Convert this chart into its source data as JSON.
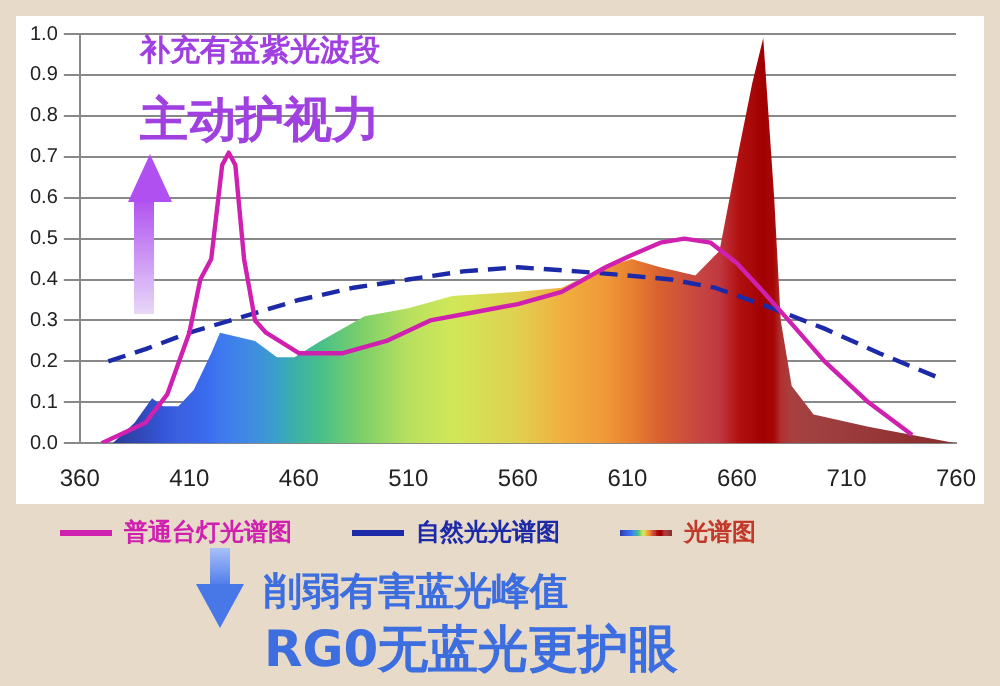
{
  "chart_data": {
    "type": "line",
    "xlim": [
      360,
      760
    ],
    "ylim": [
      0,
      1
    ],
    "xticks": [
      360,
      410,
      460,
      510,
      560,
      610,
      660,
      710,
      760
    ],
    "yticks": [
      {
        "value": 0,
        "label": "0.0"
      },
      0.1,
      0.2,
      0.3,
      0.4,
      0.5,
      0.6,
      0.7,
      0.8,
      0.9,
      {
        "value": 1,
        "label": "1.0"
      }
    ],
    "grid": "y",
    "legend": "bottom",
    "marker": "none",
    "annotations": [
      "补充有益紫光波段",
      "主动护视力",
      "削弱有害蓝光峰值",
      "RG0无蓝光更护眼"
    ],
    "series": [
      {
        "name": "普通台灯光谱图",
        "color": "#d020b0",
        "line_style": "solid",
        "x": [
          370,
          390,
          400,
          410,
          415,
          420,
          425,
          428,
          431,
          435,
          440,
          445,
          460,
          480,
          500,
          520,
          540,
          560,
          580,
          600,
          612,
          625,
          636,
          648,
          660,
          672,
          682,
          700,
          720,
          740
        ],
        "values": [
          0,
          0.05,
          0.12,
          0.27,
          0.4,
          0.45,
          0.68,
          0.71,
          0.68,
          0.45,
          0.3,
          0.27,
          0.22,
          0.22,
          0.25,
          0.3,
          0.32,
          0.34,
          0.37,
          0.43,
          0.46,
          0.49,
          0.5,
          0.49,
          0.44,
          0.37,
          0.31,
          0.2,
          0.1,
          0.02
        ]
      },
      {
        "name": "自然光光谱图",
        "color": "#1c2aa8",
        "line_style": "dashed",
        "x": [
          373,
          390,
          410,
          435,
          460,
          485,
          510,
          535,
          560,
          587,
          610,
          630,
          650,
          676,
          700,
          725,
          752
        ],
        "values": [
          0.2,
          0.23,
          0.27,
          0.31,
          0.35,
          0.38,
          0.4,
          0.42,
          0.43,
          0.42,
          0.41,
          0.4,
          0.38,
          0.33,
          0.28,
          0.22,
          0.16
        ]
      },
      {
        "name": "光谱图",
        "type": "area",
        "color": "#c0392b",
        "x": [
          375,
          385,
          393,
          398,
          405,
          412,
          420,
          424,
          440,
          450,
          458,
          470,
          490,
          510,
          530,
          560,
          580,
          600,
          612,
          625,
          641,
          652,
          661,
          667,
          672,
          677,
          680,
          685,
          695,
          720,
          740,
          760
        ],
        "values": [
          0,
          0.05,
          0.11,
          0.09,
          0.09,
          0.13,
          0.22,
          0.27,
          0.25,
          0.21,
          0.21,
          0.25,
          0.31,
          0.33,
          0.36,
          0.37,
          0.38,
          0.43,
          0.45,
          0.43,
          0.41,
          0.47,
          0.72,
          0.88,
          0.99,
          0.6,
          0.3,
          0.14,
          0.07,
          0.04,
          0.02,
          0
        ],
        "colors": [
          "#2a3a9a",
          "#2f45b0",
          "#3350c8",
          "#3456d8",
          "#3a60e0",
          "#3a66e8",
          "#3b6ef0",
          "#3f78f0",
          "#3f8ee0",
          "#3aa0c8",
          "#3cb0a8",
          "#48c088",
          "#80d068",
          "#b8e060",
          "#d0e858",
          "#e0d050",
          "#f0b040",
          "#f09838",
          "#e88030",
          "#d86030",
          "#c84840",
          "#c03840",
          "#b01010",
          "#a80808",
          "#a00000",
          "#a80808",
          "#b03030",
          "#a84040",
          "#a04040",
          "#983838",
          "#903030",
          "#883030"
        ]
      }
    ]
  }
}
